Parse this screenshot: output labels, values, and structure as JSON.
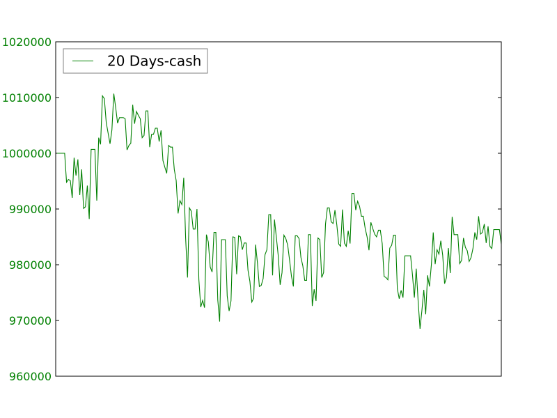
{
  "chart_data": {
    "type": "line",
    "title": "",
    "xlabel": "",
    "ylabel": "",
    "ylim": [
      960000,
      1020000
    ],
    "yticks": [
      960000,
      970000,
      980000,
      990000,
      1000000,
      1010000,
      1020000
    ],
    "ytick_labels": [
      "960000",
      "970000",
      "980000",
      "990000",
      "1000000",
      "1010000",
      "1020000"
    ],
    "xticks_visible": false,
    "grid": false,
    "legend": {
      "position": "top-left",
      "entries": [
        "20 Days-cash"
      ]
    },
    "colors": {
      "series": "#008000",
      "tick_labels": "#008000",
      "axes": "#000000"
    },
    "series": [
      {
        "name": "20 Days-cash",
        "values": [
          1000000,
          1000000,
          1000000,
          1000000,
          1000000,
          994800,
          995300,
          995100,
          992000,
          999200,
          996000,
          998900,
          992500,
          997100,
          990100,
          990400,
          994200,
          988200,
          1000700,
          1000700,
          1000700,
          991500,
          1002800,
          1001600,
          1010300,
          1009800,
          1005500,
          1003600,
          1001700,
          1004200,
          1010700,
          1008200,
          1005400,
          1006400,
          1006400,
          1006400,
          1006200,
          1000600,
          1001400,
          1001800,
          1008700,
          1005300,
          1007500,
          1006800,
          1006200,
          1002800,
          1003200,
          1007600,
          1007600,
          1001100,
          1003400,
          1003400,
          1004500,
          1004500,
          1002100,
          1004100,
          998700,
          997500,
          996400,
          1001400,
          1001100,
          1001100,
          997100,
          995100,
          989200,
          991500,
          990800,
          995600,
          984800,
          977700,
          990200,
          989600,
          986400,
          986400,
          990000,
          977300,
          972400,
          973600,
          972300,
          985400,
          984100,
          979600,
          978700,
          985800,
          985800,
          973700,
          969800,
          984500,
          984500,
          984500,
          974400,
          971700,
          973500,
          985000,
          984900,
          978300,
          985200,
          985000,
          982700,
          983900,
          983900,
          979000,
          977000,
          973300,
          974000,
          983600,
          980300,
          976100,
          976300,
          977500,
          981800,
          982700,
          989000,
          989000,
          978100,
          988100,
          984900,
          981600,
          976400,
          978600,
          985300,
          984700,
          983500,
          980800,
          977900,
          976100,
          985200,
          985200,
          984700,
          981300,
          979800,
          977200,
          977200,
          985400,
          985400,
          972600,
          975600,
          973500,
          984800,
          984500,
          977700,
          978600,
          987300,
          990200,
          990200,
          987700,
          987400,
          989800,
          987100,
          983700,
          983300,
          989900,
          983900,
          983300,
          986100,
          983800,
          992800,
          992800,
          989800,
          991400,
          990500,
          988700,
          988700,
          986500,
          985000,
          982600,
          987600,
          986500,
          985500,
          985000,
          986200,
          986200,
          983800,
          977900,
          977700,
          977300,
          983000,
          983500,
          985300,
          985300,
          975700,
          973900,
          975400,
          974100,
          981600,
          981600,
          981600,
          981600,
          978200,
          974100,
          979300,
          973500,
          968500,
          971800,
          975500,
          971100,
          978100,
          976100,
          980000,
          985800,
          980100,
          982700,
          981900,
          984300,
          981700,
          976600,
          977700,
          983000,
          978500,
          988600,
          985400,
          985400,
          985400,
          980200,
          980800,
          984800,
          983100,
          982500,
          980600,
          981300,
          982900,
          985800,
          984500,
          988700,
          985500,
          985800,
          987300,
          983900,
          986900,
          983300,
          982900,
          986300,
          986300,
          986300,
          986300,
          983700
        ]
      }
    ]
  }
}
